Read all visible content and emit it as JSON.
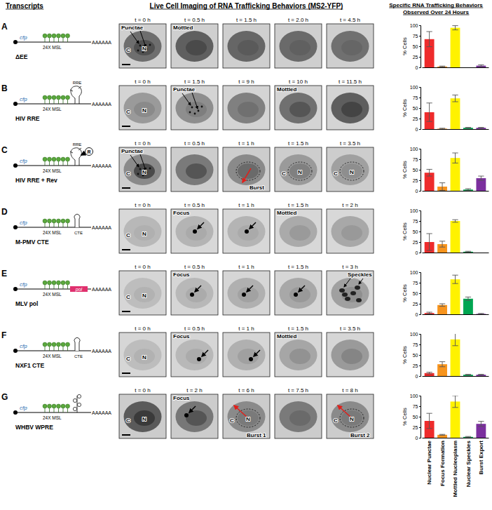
{
  "figure": {
    "headers": {
      "transcripts": "Transcripts",
      "imaging": "Live Cell Imaging of RNA Trafficking Behaviors (MS2-YFP)",
      "behaviors": [
        "Specific RNA Trafficking Behaviors",
        "Observed Over 24 Hours"
      ]
    },
    "panels": [
      {
        "letter": "A",
        "transcript": {
          "name": "ΔEE",
          "cfp": "cfp",
          "msl": "24X MSL",
          "polya": "AAAAAA"
        },
        "frames": [
          {
            "time": "t = 0 h",
            "annotations": [
              "Punctae",
              "N",
              "C"
            ]
          },
          {
            "time": "t = 0.5 h",
            "annotations": [
              "Mottled"
            ]
          },
          {
            "time": "t = 1.5 h"
          },
          {
            "time": "t = 2.0 h"
          },
          {
            "time": "t = 4.5 h"
          }
        ]
      },
      {
        "letter": "B",
        "transcript": {
          "name": "HIV RRE",
          "cfp": "cfp",
          "msl": "24X MSL",
          "polya": "AAAAAA",
          "elements": [
            "RRE"
          ]
        },
        "frames": [
          {
            "time": "t = 0 h",
            "annotations": [
              "N",
              "C"
            ]
          },
          {
            "time": "t = 1.5 h",
            "annotations": [
              "Punctae"
            ]
          },
          {
            "time": "t = 9 h"
          },
          {
            "time": "t = 10 h",
            "annotations": [
              "Mottled"
            ]
          },
          {
            "time": "t = 11.5 h"
          }
        ]
      },
      {
        "letter": "C",
        "transcript": {
          "name": "HIV RRE + Rev",
          "cfp": "cfp",
          "msl": "24X MSL",
          "polya": "AAAAAA",
          "elements": [
            "RRE",
            "R"
          ]
        },
        "frames": [
          {
            "time": "t = 0 h",
            "annotations": [
              "Punctae",
              "N",
              "C"
            ]
          },
          {
            "time": "t = 0.5 h"
          },
          {
            "time": "t = 1 h",
            "annotations": [
              "Burst"
            ]
          },
          {
            "time": "t = 1.5 h",
            "annotations": [
              "N",
              "C"
            ]
          },
          {
            "time": "t = 3.5 h",
            "annotations": [
              "N",
              "C"
            ]
          }
        ]
      },
      {
        "letter": "D",
        "transcript": {
          "name": "M-PMV CTE",
          "cfp": "cfp",
          "msl": "24X MSL",
          "polya": "AAAAAA",
          "elements": [
            "CTE"
          ]
        },
        "frames": [
          {
            "time": "t = 0 h",
            "annotations": [
              "N",
              "C"
            ]
          },
          {
            "time": "t = 0.5 h",
            "annotations": [
              "Focus"
            ]
          },
          {
            "time": "t = 1 h"
          },
          {
            "time": "t = 1.5 h",
            "annotations": [
              "Mottled"
            ]
          },
          {
            "time": "t = 2 h"
          }
        ]
      },
      {
        "letter": "E",
        "transcript": {
          "name": "MLV pol",
          "cfp": "cfp",
          "msl": "24X MSL",
          "polya": "AAAAAA",
          "elements": [
            "pol"
          ]
        },
        "frames": [
          {
            "time": "t = 0 h",
            "annotations": [
              "N",
              "C"
            ]
          },
          {
            "time": "t = 0.5 h",
            "annotations": [
              "Focus"
            ]
          },
          {
            "time": "t = 1 h"
          },
          {
            "time": "t = 1.5 h"
          },
          {
            "time": "t = 3 h",
            "annotations": [
              "Speckles"
            ]
          }
        ]
      },
      {
        "letter": "F",
        "transcript": {
          "name": "NXF1 CTE",
          "cfp": "cfp",
          "msl": "24X MSL",
          "polya": "AAAAAA",
          "elements": [
            "CTE"
          ]
        },
        "frames": [
          {
            "time": "t = 0 h",
            "annotations": [
              "N",
              "C"
            ]
          },
          {
            "time": "t = 0.5 h",
            "annotations": [
              "Focus"
            ]
          },
          {
            "time": "t = 1 h"
          },
          {
            "time": "t = 1.5 h",
            "annotations": [
              "Mottled"
            ]
          },
          {
            "time": "t = 3.5 h"
          }
        ]
      },
      {
        "letter": "G",
        "transcript": {
          "name": "WHBV WPRE",
          "cfp": "cfp",
          "msl": "24X MSL",
          "polya": "AAAAAA"
        },
        "frames": [
          {
            "time": "t = 0 h",
            "annotations": [
              "N",
              "C"
            ]
          },
          {
            "time": "t = 2 h",
            "annotations": [
              "Focus"
            ]
          },
          {
            "time": "t = 6 h",
            "annotations": [
              "Burst 1",
              "N",
              "C"
            ]
          },
          {
            "time": "t = 7.5 h"
          },
          {
            "time": "t = 8 h",
            "annotations": [
              "Burst 2",
              "N",
              "C"
            ]
          }
        ]
      }
    ]
  },
  "chart_data": [
    {
      "type": "bar",
      "categories": [
        null,
        null,
        null,
        null,
        null
      ],
      "values": [
        67,
        2,
        94,
        0,
        4
      ],
      "errors": [
        18,
        1,
        5,
        0,
        2
      ],
      "colors": [
        "#ee2b2b",
        "#f7941d",
        "#fff200",
        "#00a651",
        "#7b2f9e"
      ],
      "ylim": [
        0,
        100
      ],
      "yticks": [
        0,
        25,
        50,
        75,
        100
      ],
      "ylabel": "% Cells",
      "tick_labels": "y"
    },
    {
      "type": "bar",
      "categories": [
        null,
        null,
        null,
        null,
        null
      ],
      "values": [
        40,
        1,
        73,
        3,
        3
      ],
      "errors": [
        22,
        1,
        8,
        1,
        1
      ],
      "colors": [
        "#ee2b2b",
        "#f7941d",
        "#fff200",
        "#00a651",
        "#7b2f9e"
      ],
      "ylim": [
        0,
        100
      ],
      "yticks": [
        0,
        25,
        50,
        75,
        100
      ],
      "ylabel": "% Cells",
      "tick_labels": "y"
    },
    {
      "type": "bar",
      "categories": [
        null,
        null,
        null,
        null,
        null
      ],
      "values": [
        43,
        10,
        78,
        3,
        30
      ],
      "errors": [
        8,
        9,
        12,
        2,
        5
      ],
      "colors": [
        "#ee2b2b",
        "#f7941d",
        "#fff200",
        "#00a651",
        "#7b2f9e"
      ],
      "ylim": [
        0,
        100
      ],
      "yticks": [
        0,
        25,
        50,
        75,
        100
      ],
      "ylabel": "% Cells",
      "tick_labels": "y"
    },
    {
      "type": "bar",
      "categories": [
        null,
        null,
        null,
        null,
        null
      ],
      "values": [
        25,
        20,
        75,
        2,
        0
      ],
      "errors": [
        20,
        7,
        3,
        1,
        0
      ],
      "colors": [
        "#ee2b2b",
        "#f7941d",
        "#fff200",
        "#00a651",
        "#7b2f9e"
      ],
      "ylim": [
        0,
        100
      ],
      "yticks": [
        0,
        25,
        50,
        75,
        100
      ],
      "ylabel": "% Cells",
      "tick_labels": "y"
    },
    {
      "type": "bar",
      "categories": [
        null,
        null,
        null,
        null,
        null
      ],
      "values": [
        3,
        22,
        83,
        37,
        1
      ],
      "errors": [
        2,
        3,
        10,
        4,
        1
      ],
      "colors": [
        "#ee2b2b",
        "#f7941d",
        "#fff200",
        "#00a651",
        "#7b2f9e"
      ],
      "ylim": [
        0,
        100
      ],
      "yticks": [
        0,
        25,
        50,
        75,
        100
      ],
      "ylabel": "% Cells",
      "tick_labels": "y"
    },
    {
      "type": "bar",
      "categories": [
        null,
        null,
        null,
        null,
        null
      ],
      "values": [
        7,
        28,
        87,
        3,
        3
      ],
      "errors": [
        2,
        6,
        15,
        1,
        1
      ],
      "colors": [
        "#ee2b2b",
        "#f7941d",
        "#fff200",
        "#00a651",
        "#7b2f9e"
      ],
      "ylim": [
        0,
        100
      ],
      "yticks": [
        0,
        25,
        50,
        75,
        100
      ],
      "ylabel": "% Cells",
      "tick_labels": "y"
    },
    {
      "type": "bar",
      "categories": [
        "Nuclear Punctae",
        "Focus Formation",
        "Mottled Nucleoplasm",
        "Nuclear Speckles",
        "Burst Export"
      ],
      "values": [
        40,
        7,
        86,
        2,
        33
      ],
      "errors": [
        18,
        1,
        14,
        1,
        6
      ],
      "colors": [
        "#ee2b2b",
        "#f7941d",
        "#fff200",
        "#00a651",
        "#7b2f9e"
      ],
      "ylim": [
        0,
        100
      ],
      "yticks": [
        0,
        25,
        50,
        75,
        100
      ],
      "ylabel": "% Cells"
    }
  ]
}
